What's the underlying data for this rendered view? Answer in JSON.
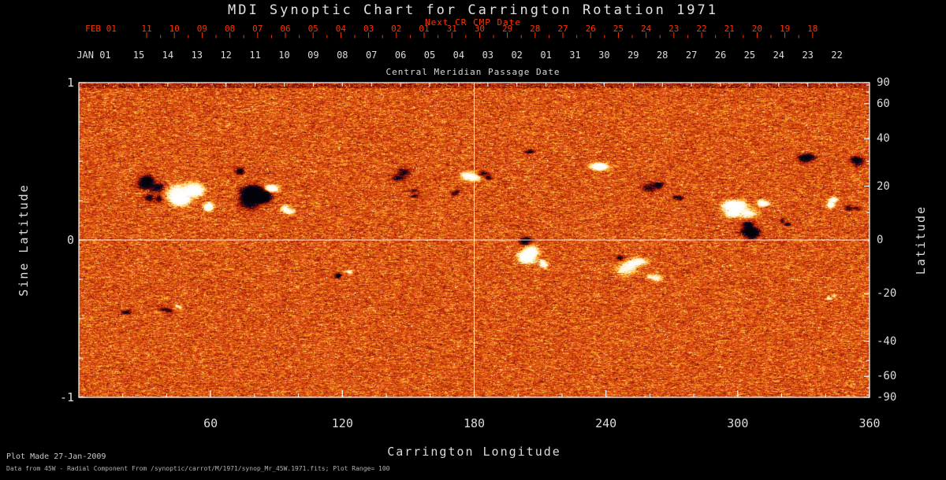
{
  "colors": {
    "background": "#000000",
    "axis": "#ffffff",
    "text": "#dcdcdc",
    "accent_red": "#ff3200",
    "heatmap_base": "#d7551c",
    "heatmap_positive": "#fff3d2",
    "heatmap_negative": "#0a0826"
  },
  "footer": {
    "line1": "Plot Made 27-Jan-2009",
    "line2": "Data from 45W - Radial Component From /synoptic/carrot/M/1971/synop_Mr_45W.1971.fits; Plot Range=  100"
  },
  "chart_data": {
    "type": "heatmap",
    "title": "MDI Synoptic Chart for Carrington Rotation 1971",
    "carrington_rotation": 1971,
    "xlabel": "Carrington Longitude",
    "ylabel_left": "Sine Latitude",
    "ylabel_right": "Latitude",
    "xlim": [
      0,
      360
    ],
    "ylim_sine": [
      -1,
      1
    ],
    "x_ticks": [
      60,
      120,
      180,
      240,
      300,
      360
    ],
    "y_ticks_sine": [
      "1",
      "0",
      "-1"
    ],
    "y_ticks_lat": [
      "90",
      "60",
      "40",
      "20",
      "0",
      "-20",
      "-40",
      "-60",
      "-90"
    ],
    "y_ticks_lat_deg": [
      90,
      60,
      40,
      20,
      0,
      -20,
      -40,
      -60,
      -90
    ],
    "plot_range_gauss": 100,
    "crosshair": {
      "longitude_deg": 180,
      "sine_latitude": 0
    },
    "top_axis": {
      "title": "Central Meridian Passage Date",
      "next_cr_title": "Next CR CMP Date",
      "cmp_row_start": "JAN 01",
      "cmp_row": [
        "15",
        "14",
        "13",
        "12",
        "11",
        "10",
        "09",
        "08",
        "07",
        "06",
        "05",
        "04",
        "03",
        "02",
        "01",
        "31",
        "30",
        "29",
        "28",
        "27",
        "26",
        "25",
        "24",
        "23",
        "22"
      ],
      "next_cr_row_start": "FEB 01",
      "next_cr_row": [
        "11",
        "10",
        "09",
        "08",
        "07",
        "06",
        "05",
        "04",
        "03",
        "02",
        "01",
        "31",
        "30",
        "29",
        "28",
        "27",
        "26",
        "25",
        "24",
        "23",
        "22",
        "21",
        "20",
        "19",
        "18"
      ]
    },
    "active_regions": [
      {
        "lon_deg": 34,
        "sine_lat": 0.36,
        "polarity": "negative",
        "strength": 2.2,
        "extent_lon_deg": 11.5,
        "extent_sine_lat": 0.1
      },
      {
        "lon_deg": 34,
        "sine_lat": 0.25,
        "polarity": "negative",
        "strength": 1.8,
        "extent_lon_deg": 7.2,
        "extent_sine_lat": 0.07
      },
      {
        "lon_deg": 47,
        "sine_lat": 0.3,
        "polarity": "positive",
        "strength": 2.0,
        "extent_lon_deg": 15.8,
        "extent_sine_lat": 0.12
      },
      {
        "lon_deg": 57,
        "sine_lat": 0.22,
        "polarity": "positive",
        "strength": 1.6,
        "extent_lon_deg": 7.2,
        "extent_sine_lat": 0.07
      },
      {
        "lon_deg": 79,
        "sine_lat": 0.3,
        "polarity": "negative",
        "strength": 2.4,
        "extent_lon_deg": 12.9,
        "extent_sine_lat": 0.14
      },
      {
        "lon_deg": 90,
        "sine_lat": 0.34,
        "polarity": "positive",
        "strength": 1.6,
        "extent_lon_deg": 8.6,
        "extent_sine_lat": 0.08
      },
      {
        "lon_deg": 95,
        "sine_lat": 0.2,
        "polarity": "positive",
        "strength": 1.5,
        "extent_lon_deg": 7.2,
        "extent_sine_lat": 0.06
      },
      {
        "lon_deg": 73,
        "sine_lat": 0.45,
        "polarity": "negative",
        "strength": 1.4,
        "extent_lon_deg": 5.7,
        "extent_sine_lat": 0.05
      },
      {
        "lon_deg": 145,
        "sine_lat": 0.42,
        "polarity": "negative",
        "strength": 1.6,
        "extent_lon_deg": 8.6,
        "extent_sine_lat": 0.07
      },
      {
        "lon_deg": 152,
        "sine_lat": 0.3,
        "polarity": "negative",
        "strength": 1.2,
        "extent_lon_deg": 5.7,
        "extent_sine_lat": 0.05
      },
      {
        "lon_deg": 117,
        "sine_lat": -0.22,
        "polarity": "negative",
        "strength": 1.5,
        "extent_lon_deg": 5.7,
        "extent_sine_lat": 0.05
      },
      {
        "lon_deg": 122,
        "sine_lat": -0.2,
        "polarity": "positive",
        "strength": 1.2,
        "extent_lon_deg": 4.3,
        "extent_sine_lat": 0.04
      },
      {
        "lon_deg": 178,
        "sine_lat": 0.38,
        "polarity": "positive",
        "strength": 1.8,
        "extent_lon_deg": 8.6,
        "extent_sine_lat": 0.08
      },
      {
        "lon_deg": 186,
        "sine_lat": 0.42,
        "polarity": "negative",
        "strength": 1.5,
        "extent_lon_deg": 6.5,
        "extent_sine_lat": 0.06
      },
      {
        "lon_deg": 171,
        "sine_lat": 0.3,
        "polarity": "negative",
        "strength": 1.2,
        "extent_lon_deg": 5.0,
        "extent_sine_lat": 0.05
      },
      {
        "lon_deg": 202,
        "sine_lat": -0.08,
        "polarity": "positive",
        "strength": 2.2,
        "extent_lon_deg": 11.5,
        "extent_sine_lat": 0.11
      },
      {
        "lon_deg": 205,
        "sine_lat": -0.01,
        "polarity": "negative",
        "strength": 1.8,
        "extent_lon_deg": 6.5,
        "extent_sine_lat": 0.06
      },
      {
        "lon_deg": 213,
        "sine_lat": -0.16,
        "polarity": "positive",
        "strength": 1.5,
        "extent_lon_deg": 6.5,
        "extent_sine_lat": 0.06
      },
      {
        "lon_deg": 252,
        "sine_lat": -0.16,
        "polarity": "positive",
        "strength": 1.9,
        "extent_lon_deg": 11.5,
        "extent_sine_lat": 0.09
      },
      {
        "lon_deg": 261,
        "sine_lat": -0.22,
        "polarity": "positive",
        "strength": 1.5,
        "extent_lon_deg": 6.5,
        "extent_sine_lat": 0.06
      },
      {
        "lon_deg": 246,
        "sine_lat": -0.1,
        "polarity": "negative",
        "strength": 1.2,
        "extent_lon_deg": 5.0,
        "extent_sine_lat": 0.05
      },
      {
        "lon_deg": 240,
        "sine_lat": 0.46,
        "polarity": "positive",
        "strength": 1.7,
        "extent_lon_deg": 9.3,
        "extent_sine_lat": 0.07
      },
      {
        "lon_deg": 262,
        "sine_lat": 0.33,
        "polarity": "negative",
        "strength": 1.8,
        "extent_lon_deg": 9.3,
        "extent_sine_lat": 0.09
      },
      {
        "lon_deg": 272,
        "sine_lat": 0.28,
        "polarity": "negative",
        "strength": 1.4,
        "extent_lon_deg": 5.7,
        "extent_sine_lat": 0.06
      },
      {
        "lon_deg": 300,
        "sine_lat": 0.2,
        "polarity": "positive",
        "strength": 2.3,
        "extent_lon_deg": 12.9,
        "extent_sine_lat": 0.11
      },
      {
        "lon_deg": 304,
        "sine_lat": 0.07,
        "polarity": "negative",
        "strength": 2.4,
        "extent_lon_deg": 11.5,
        "extent_sine_lat": 0.1
      },
      {
        "lon_deg": 312,
        "sine_lat": 0.25,
        "polarity": "positive",
        "strength": 1.5,
        "extent_lon_deg": 6.5,
        "extent_sine_lat": 0.06
      },
      {
        "lon_deg": 322,
        "sine_lat": 0.12,
        "polarity": "negative",
        "strength": 1.3,
        "extent_lon_deg": 5.0,
        "extent_sine_lat": 0.05
      },
      {
        "lon_deg": 330,
        "sine_lat": 0.52,
        "polarity": "negative",
        "strength": 1.7,
        "extent_lon_deg": 8.6,
        "extent_sine_lat": 0.07
      },
      {
        "lon_deg": 342,
        "sine_lat": 0.25,
        "polarity": "positive",
        "strength": 1.7,
        "extent_lon_deg": 7.9,
        "extent_sine_lat": 0.07
      },
      {
        "lon_deg": 352,
        "sine_lat": 0.2,
        "polarity": "negative",
        "strength": 1.3,
        "extent_lon_deg": 5.7,
        "extent_sine_lat": 0.05
      },
      {
        "lon_deg": 356,
        "sine_lat": 0.5,
        "polarity": "negative",
        "strength": 1.6,
        "extent_lon_deg": 7.2,
        "extent_sine_lat": 0.07
      },
      {
        "lon_deg": 40,
        "sine_lat": -0.44,
        "polarity": "negative",
        "strength": 1.4,
        "extent_lon_deg": 5.7,
        "extent_sine_lat": 0.05
      },
      {
        "lon_deg": 46,
        "sine_lat": -0.42,
        "polarity": "positive",
        "strength": 1.2,
        "extent_lon_deg": 4.3,
        "extent_sine_lat": 0.04
      },
      {
        "lon_deg": 22,
        "sine_lat": -0.47,
        "polarity": "negative",
        "strength": 1.3,
        "extent_lon_deg": 5.0,
        "extent_sine_lat": 0.04
      },
      {
        "lon_deg": 342,
        "sine_lat": -0.36,
        "polarity": "positive",
        "strength": 1.3,
        "extent_lon_deg": 4.3,
        "extent_sine_lat": 0.04
      },
      {
        "lon_deg": 205,
        "sine_lat": 0.55,
        "polarity": "negative",
        "strength": 1.1,
        "extent_lon_deg": 4.3,
        "extent_sine_lat": 0.04
      }
    ]
  }
}
